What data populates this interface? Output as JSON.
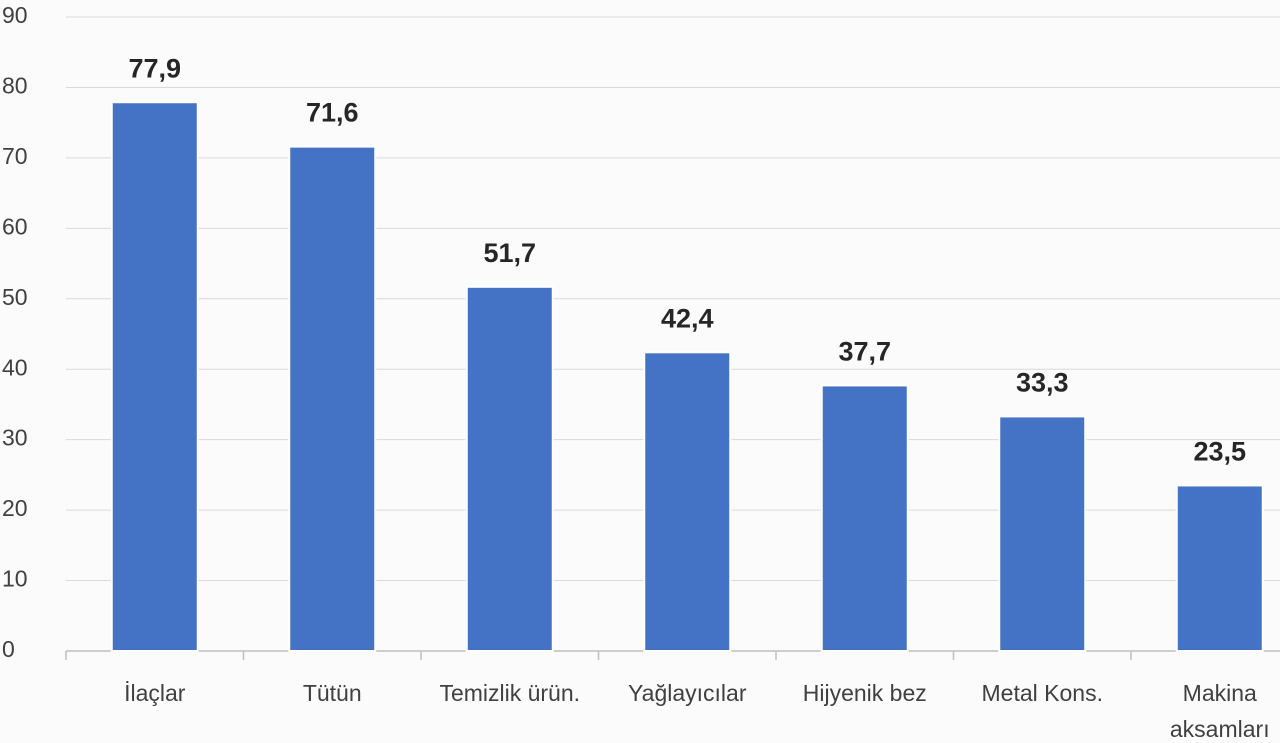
{
  "chart_data": {
    "type": "bar",
    "categories": [
      "İlaçlar",
      "Tütün",
      "Temizlik ürün.",
      "Yağlayıcılar",
      "Hijyenik bez",
      "Metal Kons.",
      "Makina aksamları"
    ],
    "values": [
      77.9,
      71.6,
      51.7,
      42.4,
      37.7,
      33.3,
      23.5
    ],
    "value_labels": [
      "77,9",
      "71,6",
      "51,7",
      "42,4",
      "37,7",
      "33,3",
      "23,5"
    ],
    "color": "#4472c4",
    "ylim": [
      0,
      90
    ],
    "yticks": [
      0,
      10,
      20,
      30,
      40,
      50,
      60,
      70,
      80,
      90
    ],
    "grid": true
  }
}
